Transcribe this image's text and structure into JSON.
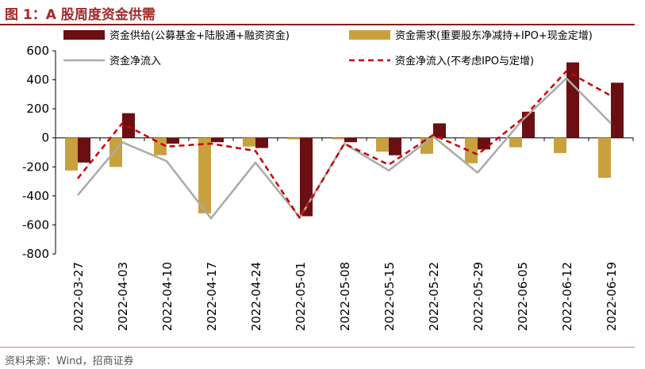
{
  "figure": {
    "title": "图 1：A 股周度资金供需",
    "source": "资料来源：Wind，招商证券"
  },
  "chart_data": {
    "type": "bar",
    "categories": [
      "2022-03-27",
      "2022-04-03",
      "2022-04-10",
      "2022-04-17",
      "2022-04-24",
      "2022-05-01",
      "2022-05-08",
      "2022-05-15",
      "2022-05-22",
      "2022-05-29",
      "2022-06-05",
      "2022-06-12",
      "2022-06-19"
    ],
    "ylim": [
      -800,
      600
    ],
    "yticks": [
      600,
      400,
      200,
      0,
      -200,
      -400,
      -600,
      -800
    ],
    "grid": false,
    "legend_position": "top",
    "series": [
      {
        "name": "资金供给(公募基金+陆股通+融资资金)",
        "kind": "bar",
        "color": "#6b0f12",
        "values": [
          -170,
          170,
          -40,
          -30,
          -70,
          -540,
          -30,
          -120,
          100,
          -80,
          180,
          520,
          380
        ]
      },
      {
        "name": "资金需求(重要股东净减持+IPO+现金定增)",
        "kind": "bar",
        "color": "#c8a13e",
        "values": [
          -225,
          -200,
          -120,
          -520,
          -60,
          -10,
          -10,
          -95,
          -110,
          -175,
          -65,
          -105,
          -275
        ]
      },
      {
        "name": "资金净流入",
        "kind": "line",
        "color": "#aaaaaa",
        "values": [
          -395,
          -30,
          -160,
          -555,
          -170,
          -550,
          -40,
          -225,
          10,
          -240,
          120,
          410,
          100
        ]
      },
      {
        "name": "资金净流入(不考虑IPO与定增)",
        "kind": "dashed-line",
        "color": "#cc0000",
        "values": [
          -280,
          100,
          -60,
          -40,
          -90,
          -555,
          -40,
          -185,
          20,
          -115,
          130,
          460,
          290
        ]
      }
    ]
  }
}
